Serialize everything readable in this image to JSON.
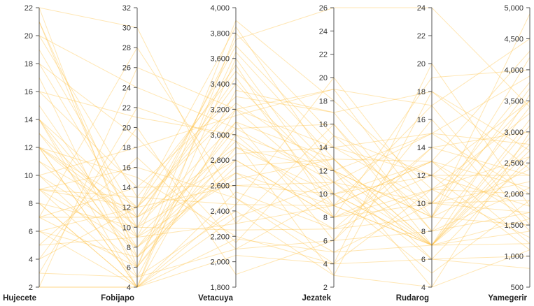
{
  "chart_data": {
    "type": "parallel-coordinates",
    "line_color": "#ffc34a",
    "axes": [
      {
        "name": "Hujecete",
        "range": [
          2,
          22
        ],
        "ticks": [
          2,
          4,
          6,
          8,
          10,
          12,
          14,
          16,
          18,
          20,
          22
        ]
      },
      {
        "name": "Fobijapo",
        "range": [
          4,
          32
        ],
        "ticks": [
          4,
          6,
          8,
          10,
          12,
          14,
          16,
          18,
          20,
          22,
          24,
          26,
          28,
          30,
          32
        ]
      },
      {
        "name": "Vetacuya",
        "range": [
          1800,
          4000
        ],
        "ticks": [
          "1,800",
          "2,000",
          "2,200",
          "2,400",
          "2,600",
          "2,800",
          "3,000",
          "3,200",
          "3,400",
          "3,600",
          "3,800",
          "4,000"
        ]
      },
      {
        "name": "Jezatek",
        "range": [
          2,
          26
        ],
        "ticks": [
          2,
          4,
          6,
          8,
          10,
          12,
          14,
          16,
          18,
          20,
          22,
          24,
          26
        ]
      },
      {
        "name": "Rudarog",
        "range": [
          4,
          24
        ],
        "ticks": [
          4,
          6,
          8,
          10,
          12,
          14,
          16,
          18,
          20,
          22,
          24
        ]
      },
      {
        "name": "Yamegerir",
        "range": [
          500,
          5000
        ],
        "ticks": [
          "500",
          "1,000",
          "1,500",
          "2,000",
          "2,500",
          "3,000",
          "3,500",
          "4,000",
          "4,500",
          "5,000"
        ]
      }
    ],
    "records": [
      [
        2,
        4,
        2050,
        4,
        6,
        800
      ],
      [
        2,
        4,
        2180,
        5,
        7,
        1200
      ],
      [
        3,
        5,
        2400,
        3,
        4,
        3000
      ],
      [
        4,
        20,
        1900,
        6,
        8,
        1700
      ],
      [
        5,
        9,
        2300,
        9,
        13,
        2100
      ],
      [
        6,
        12,
        2600,
        11,
        15,
        2800
      ],
      [
        6,
        7,
        3100,
        13,
        7,
        1400
      ],
      [
        7,
        11,
        2800,
        8,
        10,
        3500
      ],
      [
        7,
        14,
        3300,
        17,
        18,
        2400
      ],
      [
        7,
        6,
        2900,
        12,
        9,
        4200
      ],
      [
        8,
        4,
        3600,
        10,
        5,
        1900
      ],
      [
        8,
        10,
        2250,
        7,
        11,
        2600
      ],
      [
        8,
        4,
        3800,
        15,
        12,
        1100
      ],
      [
        9,
        8,
        2700,
        9,
        7,
        3200
      ],
      [
        9,
        13,
        3500,
        12,
        9,
        1500
      ],
      [
        9,
        5,
        2100,
        6,
        14,
        2300
      ],
      [
        9,
        12,
        3200,
        10,
        7,
        2900
      ],
      [
        9,
        16,
        2500,
        5,
        10,
        3800
      ],
      [
        10,
        18,
        3150,
        19,
        17,
        4500
      ],
      [
        10,
        9,
        2650,
        13,
        6,
        1000
      ],
      [
        10,
        6,
        3000,
        8,
        12,
        1800
      ],
      [
        11,
        11,
        3400,
        11,
        7,
        2700
      ],
      [
        11,
        8,
        3050,
        16,
        8,
        3400
      ],
      [
        12,
        4,
        2450,
        9,
        13,
        1600
      ],
      [
        12,
        10,
        3700,
        14,
        10,
        2200
      ],
      [
        12,
        11,
        2900,
        10,
        7,
        3100
      ],
      [
        12,
        15,
        2200,
        4,
        11,
        1300
      ],
      [
        12,
        12,
        3250,
        12,
        15,
        2000
      ],
      [
        12,
        4,
        2550,
        7,
        9,
        3700
      ],
      [
        13,
        7,
        2750,
        13,
        7,
        2500
      ],
      [
        13,
        10,
        3100,
        6,
        16,
        1400
      ],
      [
        14,
        6,
        3900,
        18,
        11,
        3300
      ],
      [
        14,
        9,
        2950,
        9,
        7,
        2800
      ],
      [
        14,
        4,
        2350,
        11,
        10,
        1700
      ],
      [
        14,
        12,
        3550,
        8,
        19,
        4000
      ],
      [
        15,
        8,
        2850,
        14,
        12,
        2300
      ],
      [
        16,
        21,
        3000,
        12,
        7,
        3600
      ],
      [
        16,
        14,
        2600,
        10,
        13,
        1200
      ],
      [
        17,
        5,
        3350,
        17,
        8,
        2100
      ],
      [
        18,
        10,
        2700,
        7,
        14,
        3000
      ],
      [
        18,
        19,
        2150,
        15,
        9,
        4900
      ],
      [
        19,
        11,
        3450,
        9,
        17,
        1500
      ],
      [
        20,
        24,
        3050,
        11,
        6,
        2600
      ],
      [
        20,
        13,
        2450,
        20,
        10,
        1900
      ],
      [
        21,
        9,
        3750,
        26,
        24,
        3400
      ],
      [
        21,
        7,
        2800,
        8,
        11,
        2000
      ],
      [
        22,
        6,
        3650,
        13,
        13,
        4300
      ],
      [
        22,
        30,
        2300,
        16,
        7,
        1600
      ],
      [
        2,
        26,
        3200,
        14,
        15,
        3900
      ],
      [
        3,
        22,
        2950,
        3,
        18,
        2700
      ],
      [
        4,
        12,
        3850,
        12,
        4,
        1100
      ],
      [
        5,
        17,
        2100,
        10,
        12,
        3500
      ],
      [
        6,
        4,
        3200,
        19,
        9,
        2400
      ],
      [
        7,
        28,
        2500,
        4,
        20,
        1800
      ]
    ]
  }
}
